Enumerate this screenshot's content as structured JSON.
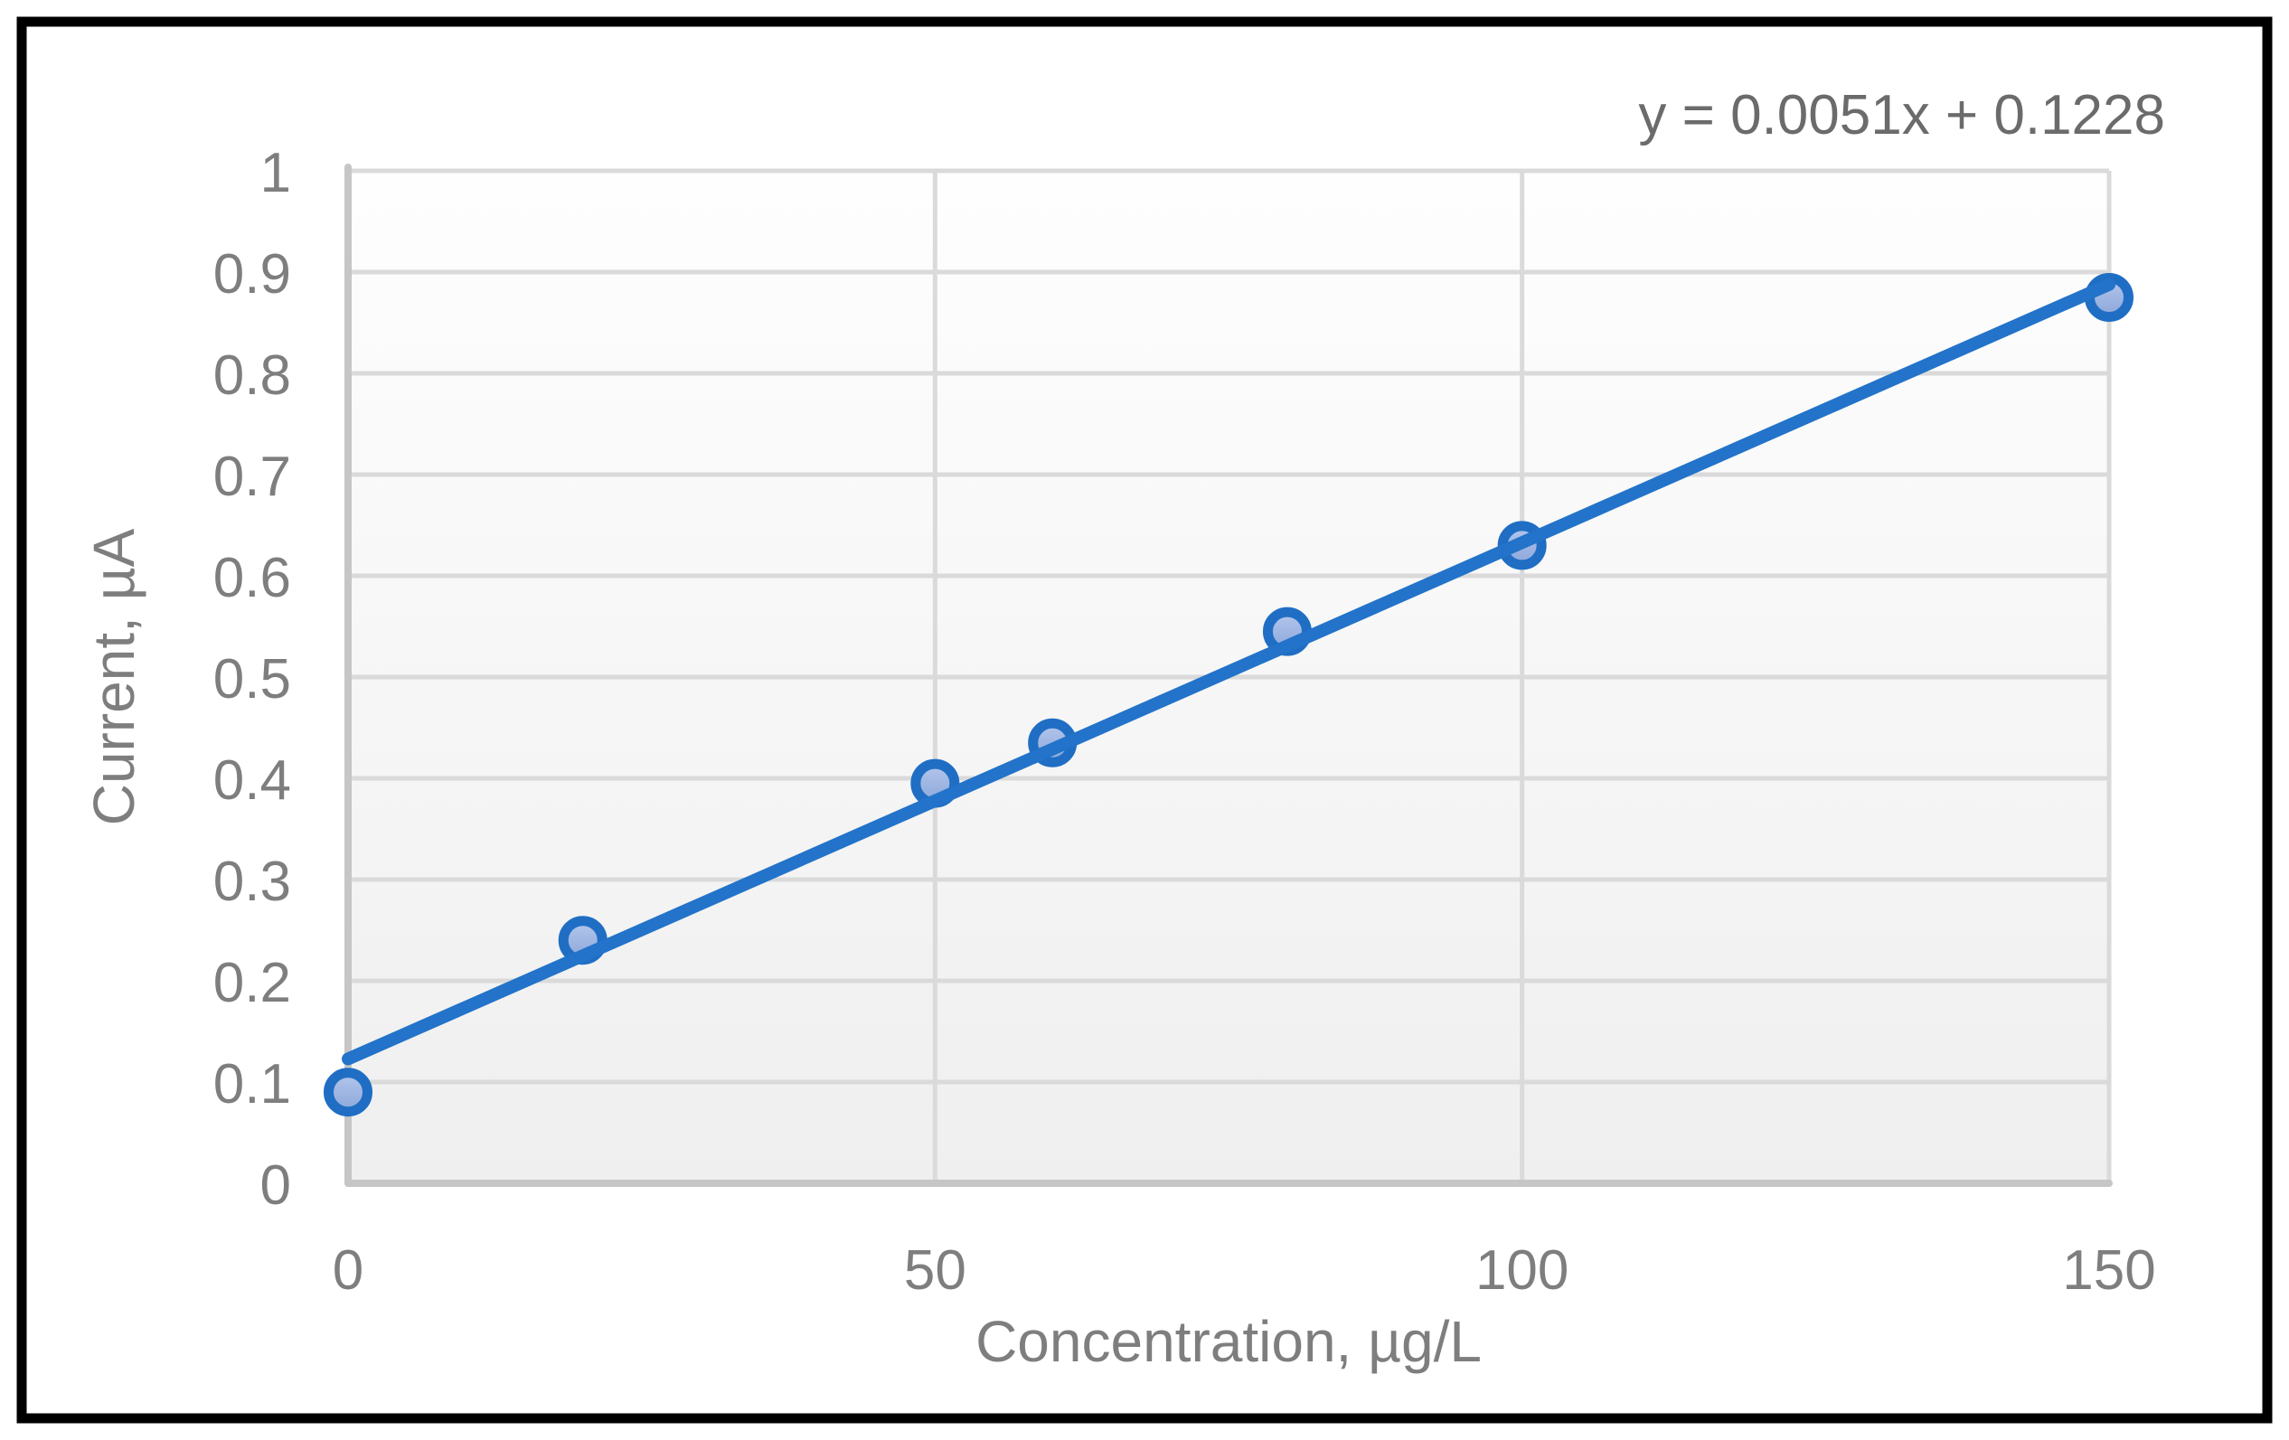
{
  "page": {
    "background_color": "#FFFFFF",
    "outer_border_color": "#000000"
  },
  "chart_data": {
    "type": "scatter",
    "title": "",
    "equation_label": "y = 0.0051x + 0.1228",
    "xlabel": "Concentration, µg/L",
    "ylabel": "Current, µA",
    "x": [
      0,
      20,
      50,
      60,
      80,
      100,
      150
    ],
    "y": [
      0.09,
      0.24,
      0.395,
      0.435,
      0.545,
      0.63,
      0.875
    ],
    "trendline": {
      "slope": 0.0051,
      "intercept": 0.1228,
      "x_start": 0,
      "x_end": 150
    },
    "xlim": [
      0,
      150
    ],
    "ylim": [
      0,
      1
    ],
    "x_ticks": [
      0,
      50,
      100,
      150
    ],
    "y_ticks": [
      0,
      0.1,
      0.2,
      0.3,
      0.4,
      0.5,
      0.6,
      0.7,
      0.8,
      0.9,
      1
    ],
    "grid": true,
    "legend": "none",
    "colors": {
      "marker_fill_light": "#B4C6EC",
      "marker_fill_dark": "#8CA7DA",
      "marker_border": "#1F6EC4",
      "trendline": "#2273C9",
      "gridline": "#DADADA",
      "axis_line": "#C6C6C6",
      "axis_text": "#7E7E7E",
      "equation_text": "#6B6B6B",
      "plot_bg_top": "#FEFEFE",
      "plot_bg_bottom": "#EFEFEF"
    }
  }
}
